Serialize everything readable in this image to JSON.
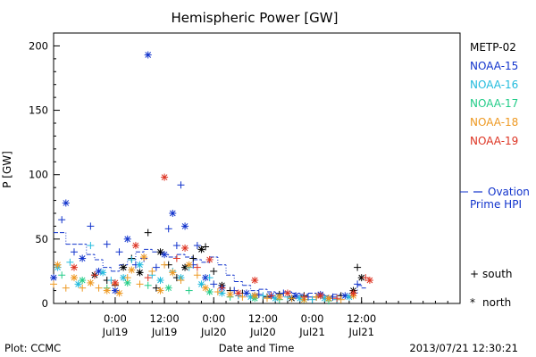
{
  "chart_data": {
    "type": "scatter",
    "title": "Hemispheric Power [GW]",
    "ylabel": "P [GW]",
    "xlabel": "Date and Time",
    "ylim": [
      0,
      210
    ],
    "y_ticks": [
      "0",
      "50",
      "100",
      "150",
      "200"
    ],
    "y_tick_values": [
      0,
      50,
      100,
      150,
      200
    ],
    "x_range_hours": [
      -15,
      84
    ],
    "x_ticks": [
      {
        "hour": 0,
        "time": "0:00",
        "date": "Jul19"
      },
      {
        "hour": 12,
        "time": "12:00",
        "date": "Jul19"
      },
      {
        "hour": 24,
        "time": "0:00",
        "date": "Jul20"
      },
      {
        "hour": 36,
        "time": "12:00",
        "date": "Jul20"
      },
      {
        "hour": 48,
        "time": "0:00",
        "date": "Jul21"
      },
      {
        "hour": 60,
        "time": "12:00",
        "date": "Jul21"
      }
    ],
    "legend": [
      {
        "name": "METP-02",
        "color": "#000000"
      },
      {
        "name": "NOAA-15",
        "color": "#1133cc"
      },
      {
        "name": "NOAA-16",
        "color": "#22bbdd"
      },
      {
        "name": "NOAA-17",
        "color": "#22cc88"
      },
      {
        "name": "NOAA-18",
        "color": "#ee9922"
      },
      {
        "name": "NOAA-19",
        "color": "#dd3322"
      }
    ],
    "ovation_label": [
      "Ovation",
      "Prime HPI"
    ],
    "ovation_color": "#1133cc",
    "marker_legend": [
      {
        "symbol": "+",
        "label": "south"
      },
      {
        "symbol": "*",
        "label": "north"
      }
    ],
    "ovation_series": [
      [
        -15,
        55
      ],
      [
        -12,
        46
      ],
      [
        -9,
        46
      ],
      [
        -7,
        38
      ],
      [
        -5,
        34
      ],
      [
        -3,
        28
      ],
      [
        -1,
        25
      ],
      [
        1,
        30
      ],
      [
        3,
        34
      ],
      [
        5,
        40
      ],
      [
        7,
        42
      ],
      [
        9,
        40
      ],
      [
        11,
        38
      ],
      [
        13,
        36
      ],
      [
        15,
        38
      ],
      [
        17,
        36
      ],
      [
        19,
        34
      ],
      [
        21,
        32
      ],
      [
        23,
        36
      ],
      [
        25,
        30
      ],
      [
        27,
        22
      ],
      [
        29,
        17
      ],
      [
        31,
        14
      ],
      [
        33,
        10
      ],
      [
        35,
        11
      ],
      [
        37,
        9
      ],
      [
        39,
        8
      ],
      [
        41,
        9
      ],
      [
        43,
        8
      ],
      [
        45,
        7
      ],
      [
        47,
        8
      ],
      [
        49,
        7
      ],
      [
        51,
        6
      ],
      [
        53,
        7
      ],
      [
        55,
        6
      ],
      [
        57,
        8
      ],
      [
        59,
        14
      ],
      [
        60,
        12
      ]
    ],
    "series": [
      {
        "name": "METP-02",
        "points": [
          [
            -5,
            22,
            "n"
          ],
          [
            -2,
            18,
            "s"
          ],
          [
            0,
            14,
            "s"
          ],
          [
            2,
            28,
            "n"
          ],
          [
            4,
            35,
            "s"
          ],
          [
            6,
            24,
            "n"
          ],
          [
            8,
            55,
            "s"
          ],
          [
            10,
            12,
            "s"
          ],
          [
            11,
            40,
            "n"
          ],
          [
            13,
            30,
            "s"
          ],
          [
            15,
            20,
            "s"
          ],
          [
            17,
            28,
            "n"
          ],
          [
            19,
            35,
            "s"
          ],
          [
            21,
            42,
            "n"
          ],
          [
            22,
            44,
            "s"
          ],
          [
            24,
            25,
            "s"
          ],
          [
            26,
            14,
            "n"
          ],
          [
            28,
            10,
            "s"
          ],
          [
            31,
            8,
            "s"
          ],
          [
            34,
            6,
            "n"
          ],
          [
            37,
            5,
            "s"
          ],
          [
            40,
            7,
            "s"
          ],
          [
            43,
            4,
            "n"
          ],
          [
            46,
            6,
            "s"
          ],
          [
            49,
            5,
            "s"
          ],
          [
            52,
            4,
            "n"
          ],
          [
            55,
            6,
            "s"
          ],
          [
            58,
            10,
            "n"
          ],
          [
            59,
            28,
            "s"
          ],
          [
            60,
            20,
            "n"
          ]
        ]
      },
      {
        "name": "NOAA-15",
        "points": [
          [
            -15,
            20,
            "n"
          ],
          [
            -13,
            65,
            "s"
          ],
          [
            -12,
            78,
            "n"
          ],
          [
            -10,
            40,
            "s"
          ],
          [
            -8,
            35,
            "n"
          ],
          [
            -6,
            60,
            "s"
          ],
          [
            -4,
            25,
            "n"
          ],
          [
            -2,
            46,
            "s"
          ],
          [
            0,
            10,
            "n"
          ],
          [
            1,
            40,
            "s"
          ],
          [
            3,
            50,
            "n"
          ],
          [
            5,
            30,
            "s"
          ],
          [
            7,
            35,
            "s"
          ],
          [
            8,
            193,
            "n"
          ],
          [
            10,
            28,
            "s"
          ],
          [
            12,
            38,
            "n"
          ],
          [
            13,
            58,
            "s"
          ],
          [
            14,
            70,
            "n"
          ],
          [
            15,
            45,
            "s"
          ],
          [
            16,
            92,
            "s"
          ],
          [
            17,
            60,
            "n"
          ],
          [
            19,
            30,
            "s"
          ],
          [
            20,
            45,
            "s"
          ],
          [
            22,
            20,
            "n"
          ],
          [
            24,
            15,
            "s"
          ],
          [
            26,
            12,
            "n"
          ],
          [
            29,
            10,
            "s"
          ],
          [
            32,
            8,
            "n"
          ],
          [
            35,
            7,
            "s"
          ],
          [
            38,
            6,
            "n"
          ],
          [
            41,
            8,
            "s"
          ],
          [
            44,
            6,
            "n"
          ],
          [
            47,
            5,
            "s"
          ],
          [
            50,
            7,
            "n"
          ],
          [
            53,
            5,
            "s"
          ],
          [
            56,
            6,
            "n"
          ],
          [
            59,
            15,
            "s"
          ]
        ]
      },
      {
        "name": "NOAA-16",
        "points": [
          [
            -14,
            28,
            "n"
          ],
          [
            -11,
            32,
            "s"
          ],
          [
            -9,
            15,
            "n"
          ],
          [
            -6,
            45,
            "s"
          ],
          [
            -3,
            24,
            "n"
          ],
          [
            -1,
            18,
            "s"
          ],
          [
            2,
            20,
            "n"
          ],
          [
            4,
            34,
            "s"
          ],
          [
            6,
            30,
            "n"
          ],
          [
            9,
            22,
            "s"
          ],
          [
            11,
            18,
            "n"
          ],
          [
            14,
            25,
            "s"
          ],
          [
            16,
            20,
            "n"
          ],
          [
            18,
            28,
            "s"
          ],
          [
            21,
            15,
            "n"
          ],
          [
            23,
            20,
            "s"
          ],
          [
            26,
            8,
            "n"
          ],
          [
            30,
            6,
            "s"
          ],
          [
            33,
            5,
            "n"
          ],
          [
            36,
            6,
            "s"
          ],
          [
            39,
            4,
            "n"
          ],
          [
            42,
            5,
            "s"
          ],
          [
            45,
            4,
            "n"
          ],
          [
            48,
            3,
            "s"
          ],
          [
            51,
            4,
            "n"
          ],
          [
            54,
            3,
            "s"
          ],
          [
            57,
            5,
            "n"
          ]
        ]
      },
      {
        "name": "NOAA-17",
        "points": [
          [
            -13,
            22,
            "s"
          ],
          [
            -8,
            18,
            "n"
          ],
          [
            -2,
            12,
            "s"
          ],
          [
            3,
            16,
            "n"
          ],
          [
            8,
            14,
            "s"
          ],
          [
            13,
            12,
            "n"
          ],
          [
            18,
            10,
            "s"
          ],
          [
            23,
            9,
            "n"
          ],
          [
            28,
            5,
            "s"
          ],
          [
            34,
            4,
            "n"
          ],
          [
            40,
            3,
            "s"
          ],
          [
            46,
            3,
            "n"
          ],
          [
            52,
            2,
            "s"
          ]
        ]
      },
      {
        "name": "NOAA-18",
        "points": [
          [
            -15,
            15,
            "s"
          ],
          [
            -14,
            30,
            "n"
          ],
          [
            -12,
            12,
            "s"
          ],
          [
            -10,
            20,
            "n"
          ],
          [
            -8,
            12,
            "s"
          ],
          [
            -6,
            16,
            "n"
          ],
          [
            -4,
            12,
            "s"
          ],
          [
            -2,
            10,
            "n"
          ],
          [
            0,
            15,
            "s"
          ],
          [
            1,
            8,
            "n"
          ],
          [
            3,
            20,
            "s"
          ],
          [
            4,
            26,
            "n"
          ],
          [
            6,
            15,
            "s"
          ],
          [
            7,
            36,
            "n"
          ],
          [
            9,
            25,
            "s"
          ],
          [
            11,
            10,
            "n"
          ],
          [
            12,
            30,
            "s"
          ],
          [
            14,
            24,
            "n"
          ],
          [
            16,
            18,
            "s"
          ],
          [
            18,
            30,
            "n"
          ],
          [
            20,
            22,
            "s"
          ],
          [
            22,
            12,
            "n"
          ],
          [
            25,
            9,
            "s"
          ],
          [
            28,
            7,
            "n"
          ],
          [
            31,
            5,
            "s"
          ],
          [
            34,
            6,
            "n"
          ],
          [
            37,
            4,
            "s"
          ],
          [
            40,
            5,
            "n"
          ],
          [
            43,
            4,
            "s"
          ],
          [
            46,
            3,
            "n"
          ],
          [
            49,
            5,
            "s"
          ],
          [
            52,
            4,
            "n"
          ],
          [
            55,
            3,
            "s"
          ],
          [
            58,
            6,
            "n"
          ]
        ]
      },
      {
        "name": "NOAA-19",
        "points": [
          [
            -10,
            28,
            "n"
          ],
          [
            -5,
            22,
            "s"
          ],
          [
            0,
            16,
            "n"
          ],
          [
            5,
            45,
            "n"
          ],
          [
            8,
            20,
            "s"
          ],
          [
            12,
            98,
            "n"
          ],
          [
            15,
            35,
            "s"
          ],
          [
            17,
            43,
            "n"
          ],
          [
            20,
            28,
            "s"
          ],
          [
            23,
            34,
            "n"
          ],
          [
            26,
            12,
            "s"
          ],
          [
            30,
            8,
            "n"
          ],
          [
            34,
            18,
            "n"
          ],
          [
            38,
            6,
            "s"
          ],
          [
            42,
            8,
            "n"
          ],
          [
            46,
            5,
            "s"
          ],
          [
            50,
            6,
            "n"
          ],
          [
            54,
            4,
            "s"
          ],
          [
            58,
            8,
            "n"
          ],
          [
            61,
            20,
            "s"
          ],
          [
            62,
            18,
            "n"
          ]
        ]
      }
    ]
  },
  "footer": {
    "plot_credit": "Plot: CCMC",
    "timestamp": "2013/07/21 12:30:21"
  }
}
